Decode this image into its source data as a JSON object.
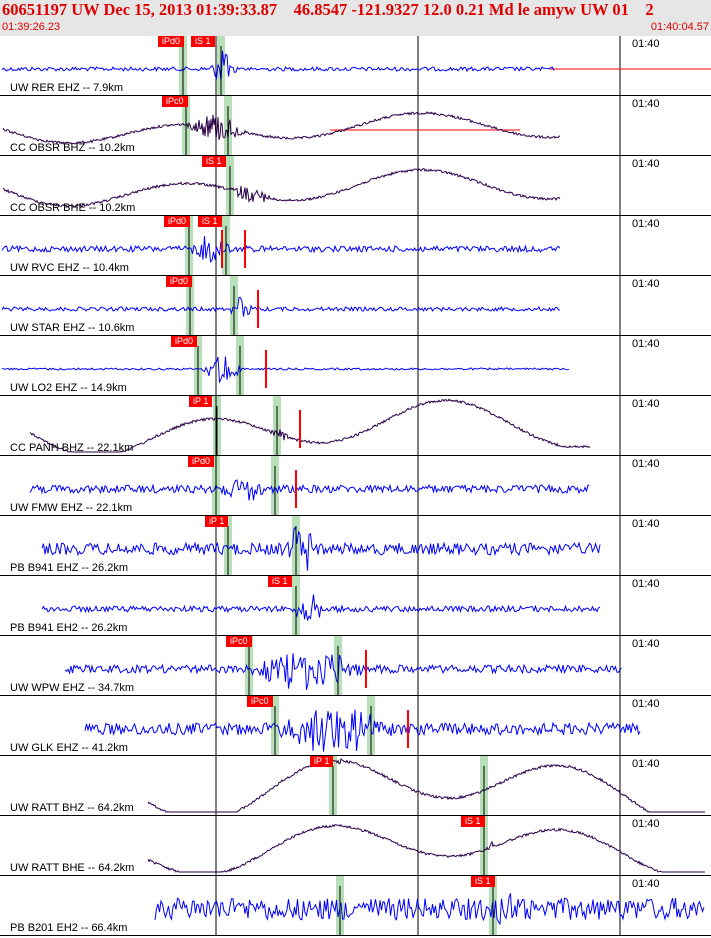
{
  "header": {
    "title": "60651197 UW Dec 15, 2013 01:39:33.87    46.8547 -121.9327 12.0 0.21 Md le amyw UW 01    2",
    "start_time": "01:39:26.23",
    "end_time": "01:40:04.57"
  },
  "colors": {
    "pick_red": "#ff0000",
    "title_red": "#e00000",
    "blue_trace": "#0000ff",
    "purple_trace": "#2a004a",
    "highlight_green": "#b8e0b8"
  },
  "panels": [
    {
      "label": "UW RER EHZ -- 7.9km",
      "minute": "01:40",
      "picks": [
        {
          "text": "iPd0"
        },
        {
          "text": "iS 1"
        }
      ]
    },
    {
      "label": "CC OBSR BHZ -- 10.2km",
      "minute": "01:40",
      "picks": [
        {
          "text": "iPc0"
        }
      ]
    },
    {
      "label": "CC OBSR BHE -- 10.2km",
      "minute": "01:40",
      "picks": [
        {
          "text": "iS 1"
        }
      ]
    },
    {
      "label": "UW RVC EHZ -- 10.4km",
      "minute": "01:40",
      "picks": [
        {
          "text": "iPd0"
        },
        {
          "text": "iS 1"
        }
      ]
    },
    {
      "label": "UW STAR EHZ -- 10.6km",
      "minute": "01:40",
      "picks": [
        {
          "text": "iPd0"
        }
      ]
    },
    {
      "label": "UW LO2 EHZ -- 14.9km",
      "minute": "01:40",
      "picks": [
        {
          "text": "iPd0"
        }
      ]
    },
    {
      "label": "CC PANH BHZ -- 22.1km",
      "minute": "01:40",
      "picks": [
        {
          "text": "iP 1"
        }
      ]
    },
    {
      "label": "UW FMW EHZ -- 22.1km",
      "minute": "01:40",
      "picks": [
        {
          "text": "iPd0"
        }
      ]
    },
    {
      "label": "PB B941 EHZ -- 26.2km",
      "minute": "01:40",
      "picks": [
        {
          "text": "iP 1"
        }
      ]
    },
    {
      "label": "PB B941 EH2 -- 26.2km",
      "minute": "01:40",
      "picks": [
        {
          "text": "iS 1"
        }
      ]
    },
    {
      "label": "UW WPW EHZ -- 34.7km",
      "minute": "01:40",
      "picks": [
        {
          "text": "iPc0"
        }
      ]
    },
    {
      "label": "UW GLK EHZ -- 41.2km",
      "minute": "01:40",
      "picks": [
        {
          "text": "iPc0"
        }
      ]
    },
    {
      "label": "UW RATT BHZ -- 64.2km",
      "minute": "01:40",
      "picks": [
        {
          "text": "iP 1"
        }
      ]
    },
    {
      "label": "UW RATT BHE -- 64.2km",
      "minute": "01:40",
      "picks": [
        {
          "text": "iS 1"
        }
      ]
    },
    {
      "label": "PB B201 EH2 -- 66.4km",
      "minute": "01:40",
      "picks": [
        {
          "text": "iS 1"
        }
      ]
    }
  ]
}
